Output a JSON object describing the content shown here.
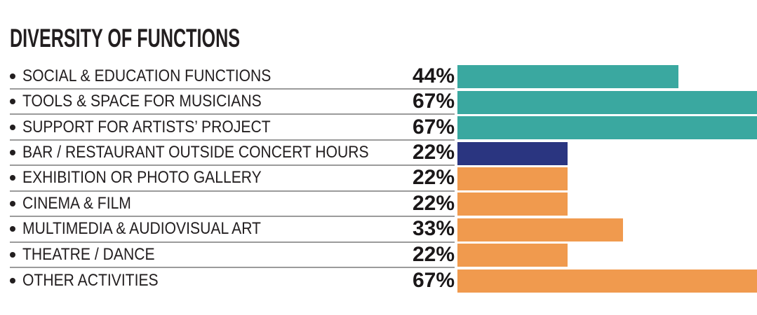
{
  "title": "DIVERSITY OF FUNCTIONS",
  "colors": {
    "teal": "#3AA8A0",
    "navy": "#2A3580",
    "orange": "#F09A4E",
    "text": "#221E1F",
    "separator": "#9B9B9B",
    "background": "#FFFFFF"
  },
  "chart_data": {
    "type": "bar",
    "orientation": "horizontal",
    "title": "DIVERSITY OF FUNCTIONS",
    "categories": [
      "SOCIAL & EDUCATION FUNCTIONS",
      "TOOLS & SPACE FOR MUSICIANS",
      "SUPPORT FOR ARTISTS’ PROJECT",
      "BAR / RESTAURANT OUTSIDE CONCERT HOURS",
      "EXHIBITION OR PHOTO GALLERY",
      "CINEMA & FILM",
      "MULTIMEDIA & AUDIOVISUAL ART",
      "THEATRE / DANCE",
      "OTHER ACTIVITIES"
    ],
    "values": [
      44,
      67,
      67,
      22,
      22,
      22,
      33,
      22,
      67
    ],
    "value_labels": [
      "44%",
      "67%",
      "67%",
      "22%",
      "22%",
      "22%",
      "33%",
      "22%",
      "67%"
    ],
    "unit": "%",
    "bar_colors": [
      "teal",
      "teal",
      "teal",
      "navy",
      "orange",
      "orange",
      "orange",
      "orange",
      "orange"
    ],
    "axis_visible_max_percent": 59.7,
    "bars_clipped_at_right_edge": [
      false,
      true,
      true,
      false,
      false,
      false,
      false,
      false,
      true
    ],
    "grid": false,
    "legend": false,
    "value_label_position": "left-of-bar",
    "row_separator_lines": true
  }
}
